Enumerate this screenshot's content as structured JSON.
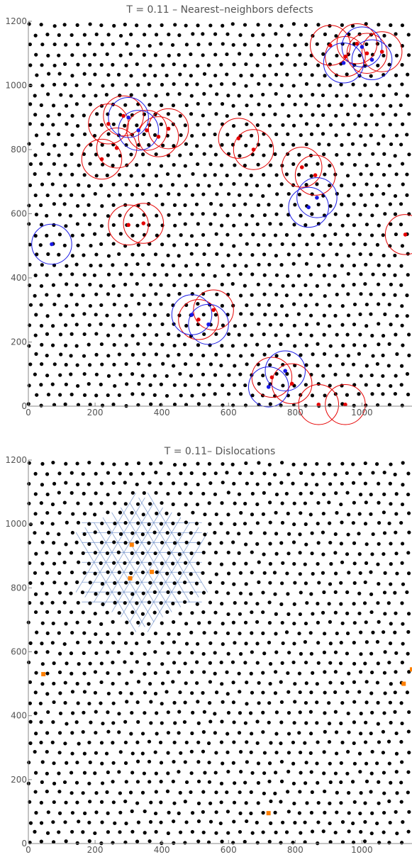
{
  "colors": {
    "lattice": "#000000",
    "positive_defect": "#e60000",
    "negative_defect": "#1a1ae6",
    "dislocation": "#ff8000",
    "lattice_lines": "#6b8cc7",
    "axis": "#888888"
  },
  "chart_data": [
    {
      "type": "scatter",
      "title": "T = 0.11 – Nearest–neighbors defects",
      "xlim": [
        0,
        1150
      ],
      "ylim": [
        0,
        1200
      ],
      "x_ticks": [
        0,
        200,
        400,
        600,
        800,
        1000
      ],
      "y_ticks": [
        0,
        200,
        400,
        600,
        800,
        1000,
        1200
      ],
      "lattice_spacing": 36,
      "grid": false,
      "series": [
        {
          "points": [
            [
              220,
              770
            ],
            [
              265,
              805
            ],
            [
              300,
              565
            ],
            [
              345,
              570
            ],
            [
              240,
              880
            ],
            [
              285,
              905
            ],
            [
              355,
              860
            ],
            [
              390,
              840
            ],
            [
              420,
              865
            ],
            [
              630,
              835
            ],
            [
              675,
              800
            ],
            [
              820,
              745
            ],
            [
              860,
              720
            ],
            [
              905,
              1125
            ],
            [
              950,
              1090
            ],
            [
              985,
              1130
            ],
            [
              1015,
              1100
            ],
            [
              1060,
              1105
            ],
            [
              510,
              270
            ],
            [
              555,
              300
            ],
            [
              730,
              90
            ],
            [
              790,
              70
            ],
            [
              870,
              5
            ],
            [
              950,
              5
            ],
            [
              1130,
              535
            ]
          ],
          "radius": 60
        },
        {
          "points": [
            [
              70,
              505
            ],
            [
              300,
              900
            ],
            [
              330,
              860
            ],
            [
              865,
              650
            ],
            [
              840,
              620
            ],
            [
              945,
              1070
            ],
            [
              1000,
              1120
            ],
            [
              1030,
              1080
            ],
            [
              540,
              255
            ],
            [
              490,
              285
            ],
            [
              770,
              110
            ],
            [
              720,
              60
            ]
          ],
          "radius": 60
        }
      ]
    },
    {
      "type": "scatter",
      "title": "T = 0.11– Dislocations",
      "xlim": [
        0,
        1150
      ],
      "ylim": [
        0,
        1200
      ],
      "x_ticks": [
        0,
        200,
        400,
        600,
        800,
        1000
      ],
      "y_ticks": [
        0,
        200,
        400,
        600,
        800,
        1000,
        1200
      ],
      "lattice_spacing": 36,
      "grid": false,
      "series": [
        {
          "points": [
            [
              310,
              935
            ],
            [
              370,
              850
            ],
            [
              305,
              830
            ],
            [
              45,
              530
            ],
            [
              1125,
              500
            ],
            [
              1150,
              545
            ],
            [
              720,
              95
            ]
          ]
        }
      ]
    }
  ]
}
